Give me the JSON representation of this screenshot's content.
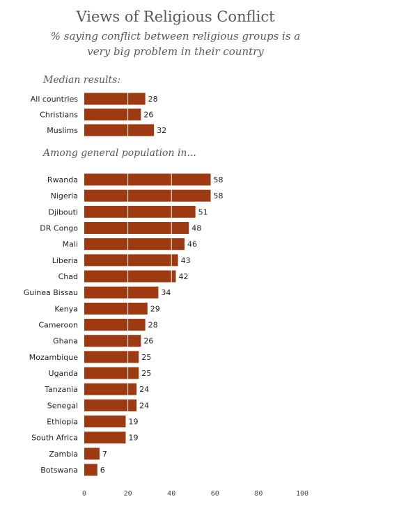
{
  "chart_data": {
    "type": "bar",
    "orientation": "horizontal",
    "title": "Views of Religious Conflict",
    "subtitle_lines": [
      "% saying conflict between religious groups is a",
      "very big problem in their country"
    ],
    "bar_color": "#9E3A12",
    "gridline_color": "#ffffff",
    "xlim": [
      0,
      100
    ],
    "x_ticks": [
      0,
      20,
      40,
      60,
      80,
      100
    ],
    "groups": [
      {
        "label": "Median results:",
        "categories": [
          "All countries",
          "Christians",
          "Muslims"
        ],
        "values": [
          28,
          26,
          32
        ]
      },
      {
        "label": "Among general population in...",
        "categories": [
          "Rwanda",
          "Nigeria",
          "Djibouti",
          "DR Congo",
          "Mali",
          "Liberia",
          "Chad",
          "Guinea Bissau",
          "Kenya",
          "Cameroon",
          "Ghana",
          "Mozambique",
          "Uganda",
          "Tanzania",
          "Senegal",
          "Ethiopia",
          "South Africa",
          "Zambia",
          "Botswana"
        ],
        "values": [
          58,
          58,
          51,
          48,
          46,
          43,
          42,
          34,
          29,
          28,
          26,
          25,
          25,
          24,
          24,
          19,
          19,
          7,
          6
        ]
      }
    ]
  }
}
